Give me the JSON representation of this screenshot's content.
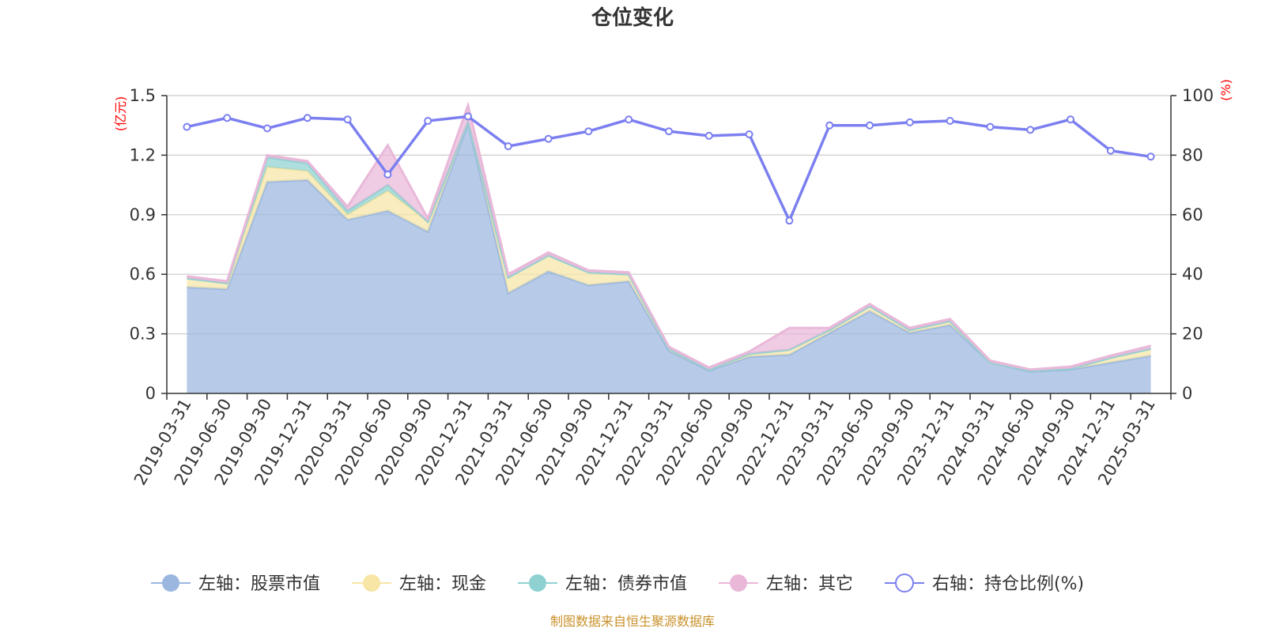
{
  "chart_data": {
    "type": "area",
    "title": "仓位变化",
    "left_unit": "(亿元)",
    "right_unit": "(%)",
    "categories": [
      "2019-03-31",
      "2019-06-30",
      "2019-09-30",
      "2019-12-31",
      "2020-03-31",
      "2020-06-30",
      "2020-09-30",
      "2020-12-31",
      "2021-03-31",
      "2021-06-30",
      "2021-09-30",
      "2021-12-31",
      "2022-03-31",
      "2022-06-30",
      "2022-09-30",
      "2022-12-31",
      "2023-03-31",
      "2023-06-30",
      "2023-09-30",
      "2023-12-31",
      "2024-03-31",
      "2024-06-30",
      "2024-09-30",
      "2024-12-31",
      "2025-03-31"
    ],
    "left_axis": {
      "min": 0,
      "max": 1.5,
      "ticks": [
        "0",
        "0.3",
        "0.6",
        "0.9",
        "1.2",
        "1.5"
      ]
    },
    "right_axis": {
      "min": 0,
      "max": 100,
      "ticks": [
        "0",
        "20",
        "40",
        "60",
        "80",
        "100"
      ]
    },
    "series": [
      {
        "name": "左轴：股票市值",
        "axis": "left",
        "stacked": true,
        "color": "#9bb7e0",
        "values": [
          0.535,
          0.525,
          1.065,
          1.075,
          0.875,
          0.92,
          0.815,
          1.36,
          0.505,
          0.615,
          0.545,
          0.565,
          0.215,
          0.115,
          0.185,
          0.195,
          0.305,
          0.415,
          0.305,
          0.345,
          0.155,
          0.11,
          0.12,
          0.155,
          0.19
        ]
      },
      {
        "name": "左轴：现金",
        "axis": "left",
        "stacked": true,
        "color": "#f7e6a6",
        "values": [
          0.045,
          0.03,
          0.075,
          0.045,
          0.025,
          0.1,
          0.05,
          0.01,
          0.08,
          0.08,
          0.065,
          0.035,
          0.01,
          0.005,
          0.015,
          0.025,
          0.015,
          0.025,
          0.015,
          0.02,
          0.0,
          0.005,
          0.005,
          0.025,
          0.035
        ]
      },
      {
        "name": "左轴：债券市值",
        "axis": "left",
        "stacked": true,
        "color": "#8fd1d1",
        "values": [
          0.0,
          0.0,
          0.05,
          0.04,
          0.02,
          0.03,
          0.0,
          0.0,
          0.0,
          0.0,
          0.0,
          0.0,
          0.0,
          0.0,
          0.0,
          0.0,
          0.0,
          0.0,
          0.0,
          0.0,
          0.0,
          0.0,
          0.0,
          0.0,
          0.0
        ]
      },
      {
        "name": "左轴：其它",
        "axis": "left",
        "stacked": true,
        "color": "#e9b8d9",
        "values": [
          0.01,
          0.01,
          0.01,
          0.01,
          0.02,
          0.2,
          0.015,
          0.08,
          0.015,
          0.015,
          0.01,
          0.01,
          0.01,
          0.01,
          0.01,
          0.11,
          0.01,
          0.01,
          0.01,
          0.01,
          0.01,
          0.005,
          0.01,
          0.01,
          0.015
        ]
      },
      {
        "name": "右轴：持仓比例(%)",
        "axis": "right",
        "type": "line",
        "color": "#7b7ff0",
        "values": [
          89.5,
          92.5,
          89.0,
          92.5,
          92.0,
          73.5,
          91.5,
          93.0,
          83.0,
          85.5,
          88.0,
          92.0,
          88.0,
          86.5,
          87.0,
          58.0,
          90.0,
          90.0,
          91.0,
          91.5,
          89.5,
          88.5,
          92.0,
          81.5,
          79.5
        ]
      }
    ],
    "grid": true,
    "legend_position": "bottom"
  },
  "footer": {
    "source_text": "制图数据来自恒生聚源数据库"
  }
}
